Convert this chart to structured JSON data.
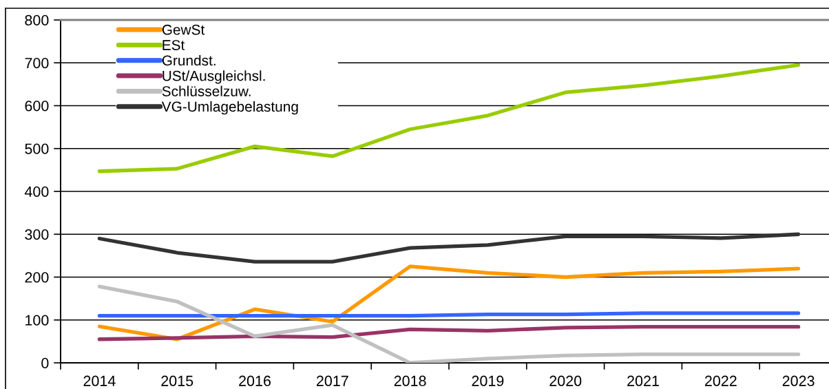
{
  "chart_data": {
    "type": "line",
    "categories": [
      "2014",
      "2015",
      "2016",
      "2017",
      "2018",
      "2019",
      "2020",
      "2021",
      "2022",
      "2023"
    ],
    "series": [
      {
        "name": "GewSt",
        "color": "#ff9900",
        "values": [
          85,
          55,
          125,
          96,
          225,
          210,
          200,
          210,
          213,
          220
        ]
      },
      {
        "name": "ESt",
        "color": "#99cc00",
        "values": [
          447,
          453,
          505,
          482,
          545,
          577,
          631,
          647,
          669,
          695
        ]
      },
      {
        "name": "Grundst.",
        "color": "#3366ff",
        "values": [
          110,
          110,
          110,
          110,
          110,
          113,
          113,
          116,
          116,
          116
        ]
      },
      {
        "name": "USt/Ausgleichsl.",
        "color": "#993366",
        "values": [
          55,
          58,
          62,
          60,
          78,
          75,
          82,
          84,
          84,
          84
        ]
      },
      {
        "name": "Schlüsselzuw.",
        "color": "#c0c0c0",
        "values": [
          178,
          143,
          62,
          88,
          0,
          10,
          17,
          20,
          20,
          20
        ]
      },
      {
        "name": "VG-Umlagebelastung",
        "color": "#333333",
        "values": [
          290,
          257,
          236,
          236,
          268,
          275,
          295,
          295,
          291,
          300
        ]
      }
    ],
    "ylim": [
      0,
      800
    ],
    "yticks": [
      0,
      100,
      200,
      300,
      400,
      500,
      600,
      700,
      800
    ],
    "grid": "y",
    "legend": "top left"
  }
}
